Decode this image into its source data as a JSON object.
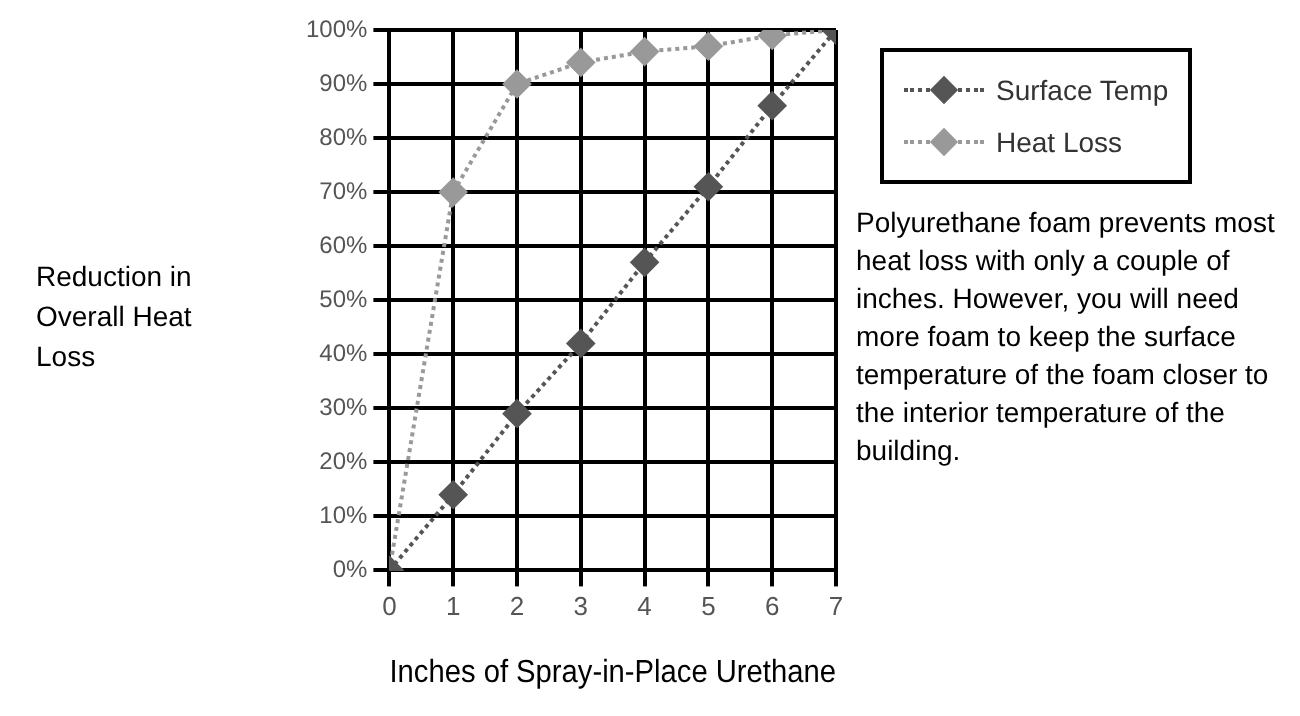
{
  "chart_data": {
    "type": "line",
    "xlabel": "Inches of Spray-in-Place Urethane",
    "ylabel": "Reduction in Overall Heat Loss",
    "x": [
      0,
      1,
      2,
      3,
      4,
      5,
      6,
      7
    ],
    "xlim": [
      0,
      7
    ],
    "xticks": [
      0,
      1,
      2,
      3,
      4,
      5,
      6,
      7
    ],
    "ylim": [
      0,
      100
    ],
    "yticks": [
      {
        "value": 0,
        "label": "0%"
      },
      {
        "value": 10,
        "label": "10%"
      },
      {
        "value": 20,
        "label": "20%"
      },
      {
        "value": 30,
        "label": "30%"
      },
      {
        "value": 40,
        "label": "40%"
      },
      {
        "value": 50,
        "label": "50%"
      },
      {
        "value": 60,
        "label": "60%"
      },
      {
        "value": 70,
        "label": "70%"
      },
      {
        "value": 80,
        "label": "80%"
      },
      {
        "value": 90,
        "label": "90%"
      },
      {
        "value": 100,
        "label": "100%"
      }
    ],
    "grid": true,
    "legend": "top right",
    "marker": "diamond",
    "line_style": "dotted",
    "series": [
      {
        "name": "Surface Temp",
        "color": "#555555",
        "values": [
          0,
          14,
          29,
          42,
          57,
          71,
          86,
          100
        ]
      },
      {
        "name": "Heat Loss",
        "color": "#999999",
        "values": [
          0,
          70,
          90,
          94,
          96,
          97,
          99,
          100
        ]
      }
    ],
    "annotations": [
      "Polyurethane foam prevents most heat loss with only a couple of inches. However, you will need more foam to keep the surface temperature of the foam closer to the interior temperature of the building."
    ]
  }
}
